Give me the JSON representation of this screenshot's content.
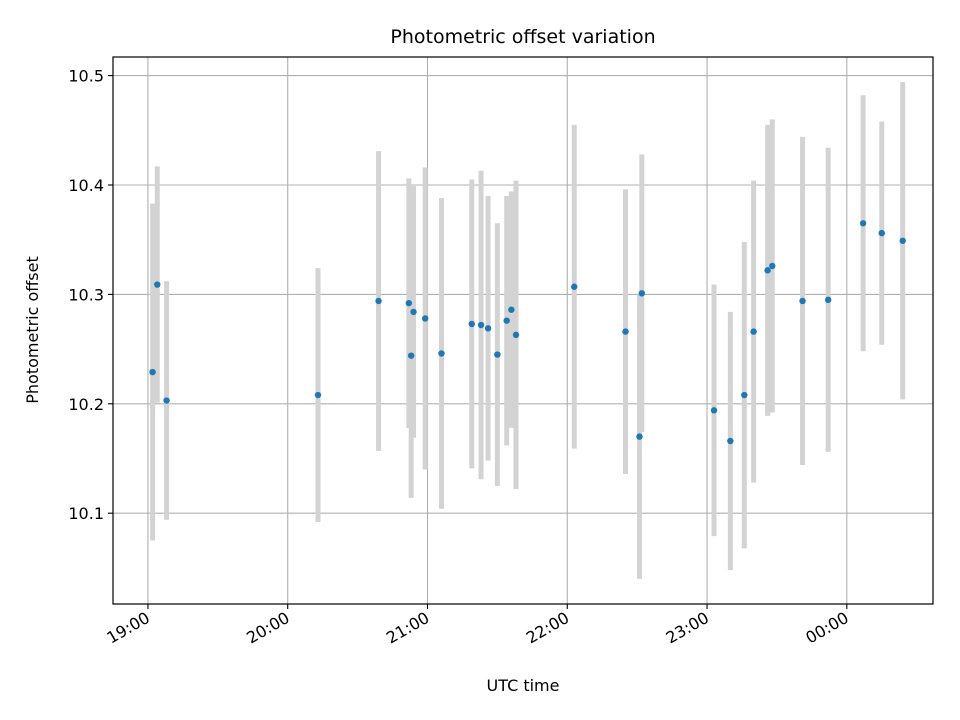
{
  "chart_data": {
    "type": "scatter",
    "title": "Photometric offset variation",
    "xlabel": "UTC time",
    "ylabel": "Photometric offset",
    "x_ticks": [
      "19:00",
      "20:00",
      "21:00",
      "22:00",
      "23:00",
      "00:00"
    ],
    "y_ticks": [
      "10.1",
      "10.2",
      "10.3",
      "10.4",
      "10.5"
    ],
    "xlim": [
      "18:45",
      "00:37"
    ],
    "ylim": [
      10.017,
      10.517
    ],
    "grid": true,
    "marker_color": "#1f77b4",
    "errorbar_color": "#d3d3d3",
    "series": [
      {
        "points": [
          {
            "x": "19:02",
            "y": 10.229,
            "err": 0.154
          },
          {
            "x": "19:04",
            "y": 10.309,
            "err": 0.108
          },
          {
            "x": "19:08",
            "y": 10.203,
            "err": 0.109
          },
          {
            "x": "20:13",
            "y": 10.208,
            "err": 0.116
          },
          {
            "x": "20:39",
            "y": 10.294,
            "err": 0.137
          },
          {
            "x": "20:52",
            "y": 10.292,
            "err": 0.114
          },
          {
            "x": "20:53",
            "y": 10.244,
            "err": 0.13
          },
          {
            "x": "20:54",
            "y": 10.284,
            "err": 0.115
          },
          {
            "x": "20:59",
            "y": 10.278,
            "err": 0.138
          },
          {
            "x": "21:06",
            "y": 10.246,
            "err": 0.142
          },
          {
            "x": "21:19",
            "y": 10.273,
            "err": 0.132
          },
          {
            "x": "21:23",
            "y": 10.272,
            "err": 0.141
          },
          {
            "x": "21:26",
            "y": 10.269,
            "err": 0.121
          },
          {
            "x": "21:30",
            "y": 10.245,
            "err": 0.12
          },
          {
            "x": "21:34",
            "y": 10.276,
            "err": 0.114
          },
          {
            "x": "21:36",
            "y": 10.286,
            "err": 0.108
          },
          {
            "x": "21:38",
            "y": 10.263,
            "err": 0.141
          },
          {
            "x": "22:03",
            "y": 10.307,
            "err": 0.148
          },
          {
            "x": "22:25",
            "y": 10.266,
            "err": 0.13
          },
          {
            "x": "22:31",
            "y": 10.17,
            "err": 0.13
          },
          {
            "x": "22:32",
            "y": 10.301,
            "err": 0.127
          },
          {
            "x": "23:03",
            "y": 10.194,
            "err": 0.115
          },
          {
            "x": "23:10",
            "y": 10.166,
            "err": 0.118
          },
          {
            "x": "23:16",
            "y": 10.208,
            "err": 0.14
          },
          {
            "x": "23:20",
            "y": 10.266,
            "err": 0.138
          },
          {
            "x": "23:26",
            "y": 10.322,
            "err": 0.133
          },
          {
            "x": "23:28",
            "y": 10.326,
            "err": 0.134
          },
          {
            "x": "23:41",
            "y": 10.294,
            "err": 0.15
          },
          {
            "x": "23:52",
            "y": 10.295,
            "err": 0.139
          },
          {
            "x": "00:07",
            "y": 10.365,
            "err": 0.117
          },
          {
            "x": "00:15",
            "y": 10.356,
            "err": 0.102
          },
          {
            "x": "00:24",
            "y": 10.349,
            "err": 0.145
          }
        ]
      }
    ]
  }
}
